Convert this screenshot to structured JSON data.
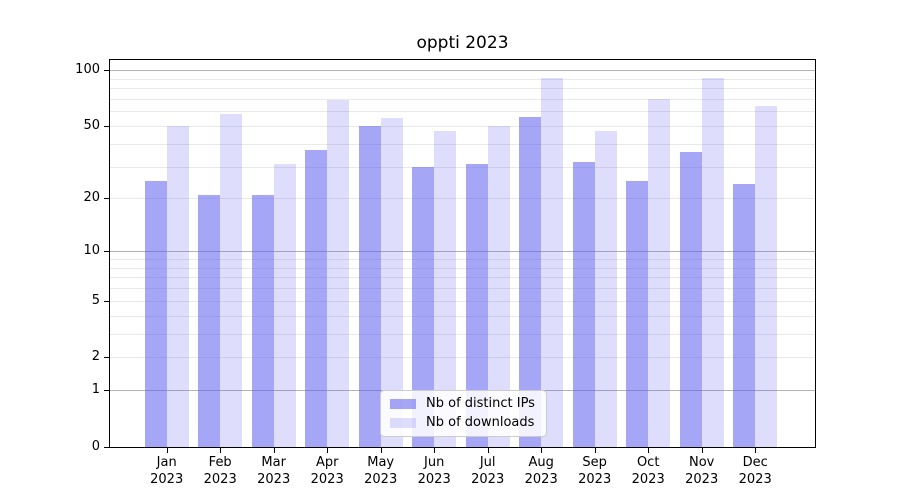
{
  "chart_data": {
    "type": "bar",
    "title": "oppti 2023",
    "categories": [
      "Jan",
      "Feb",
      "Mar",
      "Apr",
      "May",
      "Jun",
      "Jul",
      "Aug",
      "Sep",
      "Oct",
      "Nov",
      "Dec"
    ],
    "category_year": "2023",
    "series": [
      {
        "name": "Nb of distinct IPs",
        "color": "rgba(92,92,238,0.55)",
        "values": [
          25,
          21,
          21,
          37,
          50,
          30,
          31,
          56,
          32,
          25,
          36,
          24
        ]
      },
      {
        "name": "Nb of downloads",
        "color": "rgba(92,92,238,0.20)",
        "values": [
          50,
          58,
          31,
          69,
          55,
          47,
          50,
          91,
          47,
          70,
          91,
          64
        ]
      }
    ],
    "y_axis": {
      "scale": "log1p",
      "max": 113.4,
      "tick_values": [
        0,
        1,
        2,
        5,
        10,
        20,
        50,
        100
      ],
      "tick_labels": [
        "0",
        "1",
        "2",
        "5",
        "10",
        "20",
        "50",
        "100"
      ],
      "major_gridlines": [
        1,
        10,
        100
      ],
      "minor_gridlines": [
        2,
        3,
        4,
        5,
        6,
        7,
        8,
        9,
        20,
        30,
        40,
        50,
        60,
        70,
        80,
        90
      ]
    },
    "grid": true,
    "legend": {
      "position": "bottom-center",
      "entries": [
        "Nb of distinct IPs",
        "Nb of downloads"
      ]
    },
    "colors": {
      "bar_dark": "rgba(92,92,238,0.55)",
      "bar_light": "rgba(92,92,238,0.20)",
      "grid_minor": "#e9e9e9",
      "grid_major": "#b3b3b3",
      "axis": "#000000"
    }
  }
}
